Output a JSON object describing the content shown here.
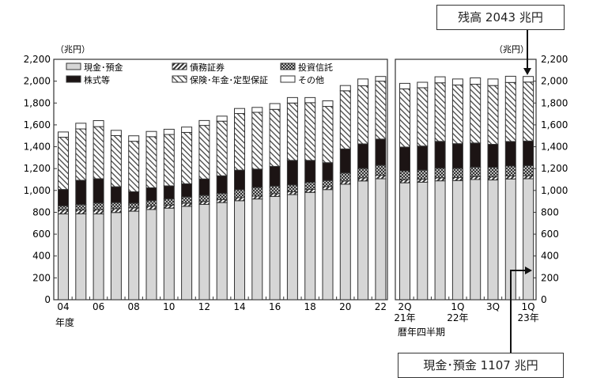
{
  "callouts": {
    "total": "残高 2043 兆円",
    "cash": "現金･預金 1107 兆円"
  },
  "chart_data": [
    {
      "type": "bar",
      "stacked": true,
      "title": "",
      "unit_label": "（兆円）",
      "xlabel": "年度",
      "ylabel": "",
      "ylim": [
        0,
        2200
      ],
      "yticks": [
        0,
        200,
        400,
        600,
        800,
        1000,
        1200,
        1400,
        1600,
        1800,
        2000,
        2200
      ],
      "ytick_labels": [
        "0",
        "200",
        "400",
        "600",
        "800",
        "1,000",
        "1,200",
        "1,400",
        "1,600",
        "1,800",
        "2,000",
        "2,200"
      ],
      "y_axis_position": "left",
      "categories": [
        "04",
        "05",
        "06",
        "07",
        "08",
        "09",
        "10",
        "11",
        "12",
        "13",
        "14",
        "15",
        "16",
        "17",
        "18",
        "19",
        "20",
        "21",
        "22"
      ],
      "x_tick_labels": [
        "04",
        "",
        "06",
        "",
        "08",
        "",
        "10",
        "",
        "12",
        "",
        "14",
        "",
        "16",
        "",
        "18",
        "",
        "20",
        "",
        "22"
      ],
      "legend_position": "top-inside",
      "series": [
        {
          "name": "現金･預金",
          "pattern": "light-gray",
          "values": [
            785,
            786,
            785,
            798,
            810,
            826,
            838,
            855,
            872,
            889,
            906,
            922,
            945,
            962,
            982,
            1008,
            1057,
            1087,
            1107
          ]
        },
        {
          "name": "債務証券",
          "pattern": "dense-diagonal",
          "values": [
            36,
            35,
            38,
            35,
            31,
            30,
            28,
            28,
            27,
            28,
            28,
            26,
            25,
            26,
            28,
            27,
            29,
            28,
            32
          ]
        },
        {
          "name": "投資信託",
          "pattern": "checker",
          "values": [
            38,
            50,
            62,
            56,
            42,
            50,
            56,
            58,
            56,
            57,
            72,
            80,
            70,
            62,
            65,
            56,
            74,
            87,
            91
          ]
        },
        {
          "name": "株式等",
          "pattern": "black",
          "values": [
            150,
            222,
            222,
            145,
            105,
            118,
            120,
            120,
            150,
            160,
            180,
            167,
            180,
            225,
            200,
            163,
            220,
            224,
            240
          ]
        },
        {
          "name": "保険･年金･定型保証",
          "pattern": "wide-diagonal",
          "values": [
            478,
            470,
            477,
            468,
            462,
            468,
            470,
            470,
            490,
            500,
            518,
            520,
            522,
            525,
            528,
            515,
            532,
            532,
            530
          ]
        },
        {
          "name": "その他",
          "pattern": "white",
          "values": [
            48,
            52,
            55,
            48,
            50,
            48,
            48,
            49,
            45,
            46,
            46,
            45,
            53,
            50,
            47,
            51,
            48,
            62,
            43
          ]
        }
      ],
      "totals": [
        1535,
        1615,
        1639,
        1550,
        1500,
        1540,
        1560,
        1580,
        1640,
        1680,
        1750,
        1760,
        1795,
        1850,
        1850,
        1820,
        1960,
        2020,
        2043
      ]
    },
    {
      "type": "bar",
      "stacked": true,
      "title": "",
      "unit_label": "（兆円）",
      "xlabel": "暦年四半期",
      "ylim": [
        0,
        2200
      ],
      "yticks": [
        0,
        200,
        400,
        600,
        800,
        1000,
        1200,
        1400,
        1600,
        1800,
        2000,
        2200
      ],
      "ytick_labels": [
        "0",
        "200",
        "400",
        "600",
        "800",
        "1,000",
        "1,200",
        "1,400",
        "1,600",
        "1,800",
        "2,000",
        "2,200"
      ],
      "y_axis_position": "right",
      "categories": [
        "21Q2",
        "21Q3",
        "21Q4",
        "22Q1",
        "22Q2",
        "22Q3",
        "22Q4",
        "23Q1"
      ],
      "x_tick_labels": [
        [
          "2Q",
          "21年"
        ],
        [
          "",
          ""
        ],
        [
          "",
          ""
        ],
        [
          "1Q",
          "22年"
        ],
        [
          "",
          ""
        ],
        [
          "3Q",
          ""
        ],
        [
          "",
          ""
        ],
        [
          "1Q",
          "23年"
        ]
      ],
      "series": [
        {
          "name": "現金･預金",
          "pattern": "light-gray",
          "values": [
            1070,
            1075,
            1088,
            1090,
            1100,
            1096,
            1105,
            1107
          ]
        },
        {
          "name": "債務証券",
          "pattern": "dense-diagonal",
          "values": [
            27,
            28,
            28,
            28,
            27,
            28,
            28,
            28
          ]
        },
        {
          "name": "投資信託",
          "pattern": "checker",
          "values": [
            82,
            83,
            88,
            85,
            87,
            88,
            90,
            92
          ]
        },
        {
          "name": "株式等",
          "pattern": "black",
          "values": [
            218,
            220,
            245,
            225,
            220,
            210,
            225,
            225
          ]
        },
        {
          "name": "保険･年金･定型保証",
          "pattern": "wide-diagonal",
          "values": [
            533,
            534,
            536,
            537,
            538,
            538,
            540,
            540
          ]
        },
        {
          "name": "その他",
          "pattern": "white",
          "values": [
            50,
            50,
            55,
            55,
            58,
            60,
            57,
            51
          ]
        }
      ],
      "totals": [
        1980,
        1990,
        2040,
        2020,
        2030,
        2020,
        2045,
        2043
      ]
    }
  ]
}
